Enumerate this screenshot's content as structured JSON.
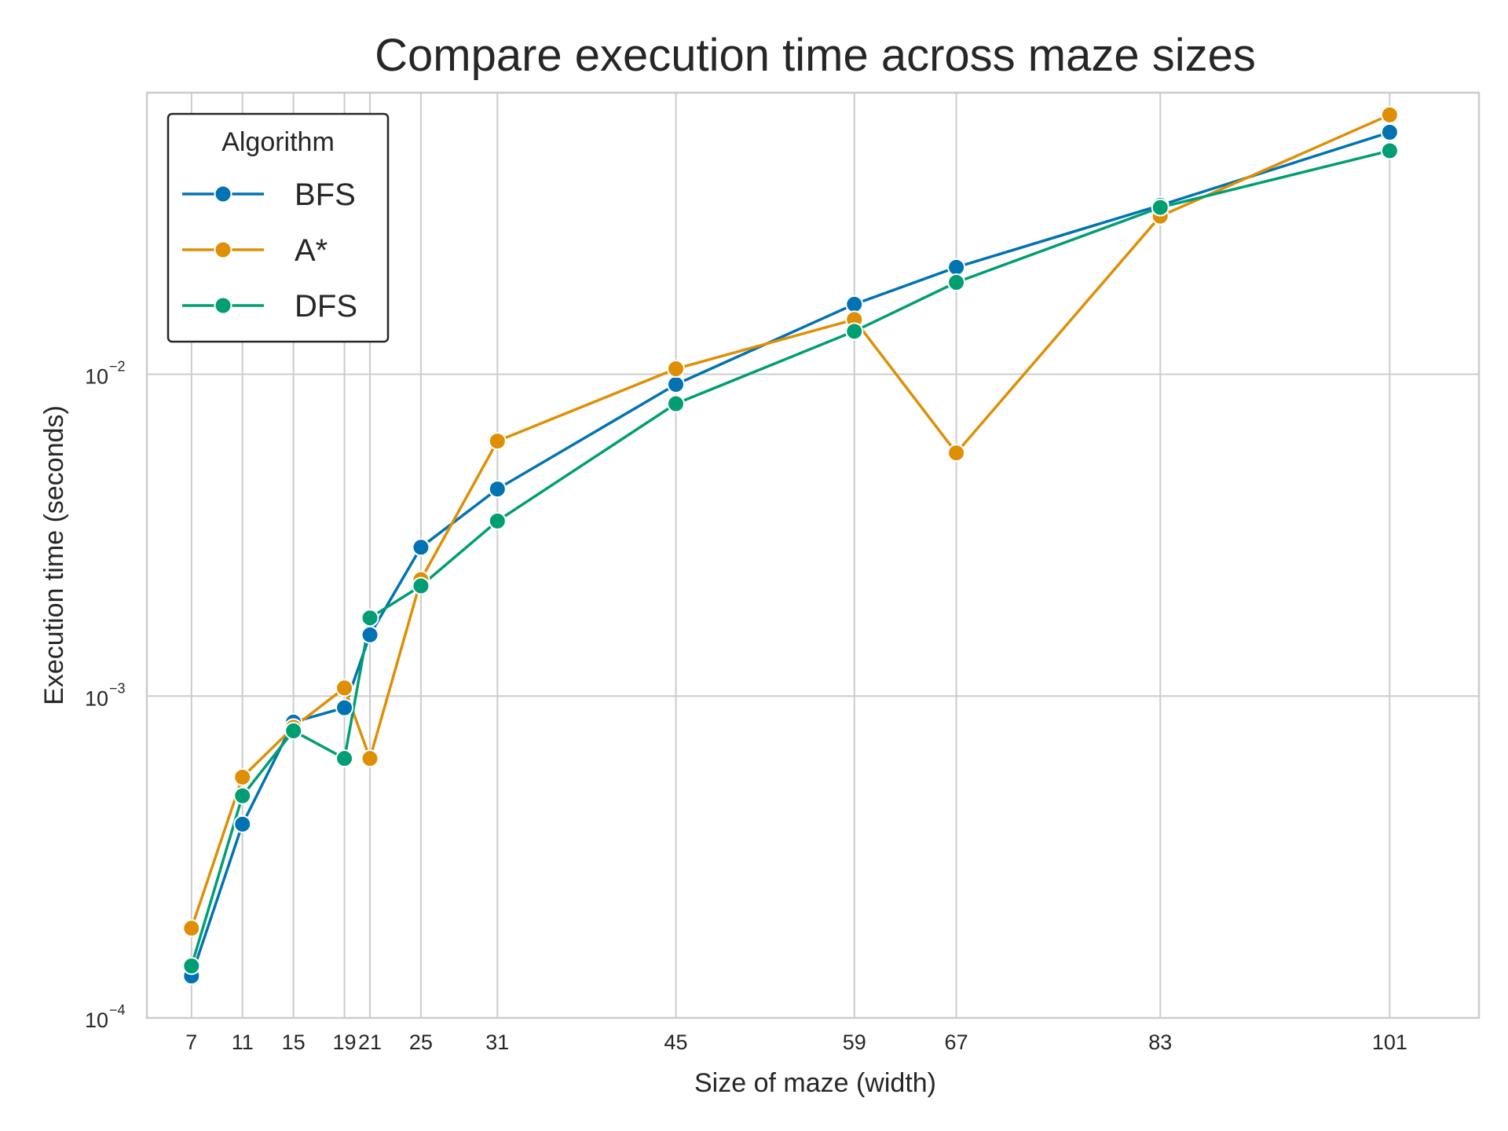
{
  "chart_data": {
    "type": "line",
    "title": "Compare execution time across maze sizes",
    "xlabel": "Size of maze (width)",
    "ylabel": "Execution time (seconds)",
    "y_scale": "log",
    "ylim": [
      0.0001,
      0.075
    ],
    "xlim": [
      3.5,
      108
    ],
    "grid": true,
    "legend": {
      "title": "Algorithm",
      "position": "top-left"
    },
    "x": [
      7,
      11,
      15,
      19,
      21,
      25,
      31,
      45,
      59,
      67,
      83,
      101
    ],
    "x_tick_labels": [
      "7",
      "11",
      "15",
      "19",
      "21",
      "25",
      "31",
      "45",
      "59",
      "67",
      "83",
      "101"
    ],
    "y_ticks": [
      {
        "value": 0.0001,
        "base": "10",
        "exp": "−4"
      },
      {
        "value": 0.001,
        "base": "10",
        "exp": "−3"
      },
      {
        "value": 0.01,
        "base": "10",
        "exp": "−2"
      }
    ],
    "series": [
      {
        "name": "BFS",
        "color": "#0173b2",
        "values": [
          0.000135,
          0.0004,
          0.00083,
          0.00092,
          0.00155,
          0.0029,
          0.0044,
          0.0093,
          0.0165,
          0.0215,
          0.0335,
          0.0565
        ]
      },
      {
        "name": "A*",
        "color": "#de8f05",
        "values": [
          0.00019,
          0.00056,
          0.0008,
          0.00106,
          0.00064,
          0.0023,
          0.0062,
          0.0104,
          0.0148,
          0.0057,
          0.031,
          0.064
        ]
      },
      {
        "name": "DFS",
        "color": "#029e73",
        "values": [
          0.000145,
          0.00049,
          0.00078,
          0.00064,
          0.00175,
          0.0022,
          0.0035,
          0.0081,
          0.0136,
          0.0193,
          0.033,
          0.0495
        ]
      }
    ]
  }
}
